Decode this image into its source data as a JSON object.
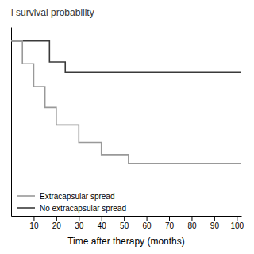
{
  "chart_data": {
    "type": "line",
    "title": "l survival probability",
    "x_label": "Time after therapy (months)",
    "xlim": [
      0,
      102
    ],
    "ylim": [
      0.0,
      1.08
    ],
    "xticks": [
      10,
      20,
      30,
      40,
      50,
      60,
      70,
      80,
      90,
      100
    ],
    "yticks": [],
    "tick_labels": "x",
    "grid": false,
    "legend": "lower-left",
    "series": [
      {
        "name": "No extracapsular spread",
        "color": "#3a3a3a",
        "x": [
          0,
          17,
          17,
          24,
          24,
          102
        ],
        "values": [
          1.0,
          1.0,
          0.88,
          0.88,
          0.82,
          0.82
        ]
      },
      {
        "name": "Extracapsular spread",
        "color": "#999999",
        "x": [
          0,
          5,
          5,
          10,
          10,
          15,
          15,
          20,
          20,
          30,
          30,
          40,
          40,
          52,
          52,
          102
        ],
        "values": [
          1.0,
          1.0,
          0.87,
          0.87,
          0.74,
          0.74,
          0.62,
          0.62,
          0.52,
          0.52,
          0.42,
          0.42,
          0.35,
          0.35,
          0.3,
          0.3
        ]
      }
    ]
  }
}
